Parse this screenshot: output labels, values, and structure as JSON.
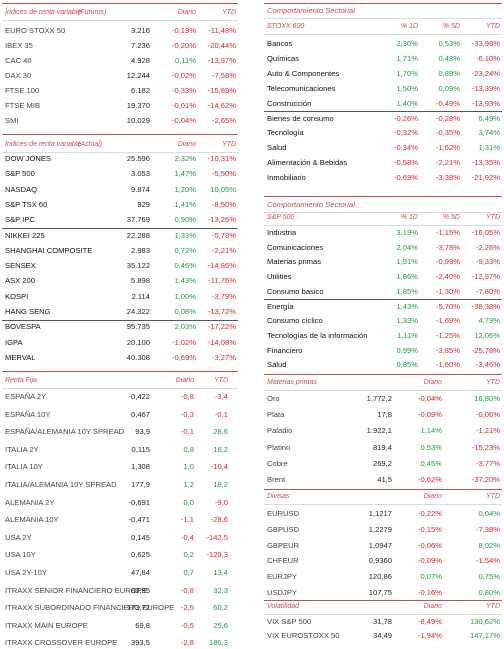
{
  "left": [
    {
      "header": {
        "label": "Índices de renta variable",
        "note": "(Futuros)",
        "columns": [
          "Diario",
          "YTD"
        ]
      },
      "rows": [
        [
          "EURO STOXX 50",
          "3.216",
          "-0,19%",
          "-11,48%"
        ],
        [
          "IBEX 35",
          "7.236",
          "-0,20%",
          "-20,44%"
        ],
        [
          "CAC 40",
          "4.928",
          "0,11%",
          "-13,97%"
        ],
        [
          "DAX 30",
          "12.244",
          "-0,02%",
          "-7,58%"
        ],
        [
          "FTSE 100",
          "6.182",
          "-0,33%",
          "-15,89%"
        ],
        [
          "FTSE MIB",
          "19.370",
          "-0,01%",
          "-14,62%"
        ],
        [
          "SMI",
          "10.029",
          "-0,04%",
          "-2,65%"
        ]
      ]
    },
    {
      "header": {
        "label": "Índices de renta variable",
        "note": "(Actual)",
        "columns": [
          "Diario",
          "YTD"
        ]
      },
      "rows": [
        [
          "DOW JONES",
          "25.596",
          "2,32%",
          "-10,31%"
        ],
        [
          "S&P 500",
          "3.053",
          "1,47%",
          "-5,50%"
        ],
        [
          "NASDAQ",
          "9.874",
          "1,20%",
          "10,05%"
        ],
        [
          "S&P TSX 60",
          "929",
          "1,41%",
          "-8,50%"
        ],
        [
          "S&P IPC",
          "37.769",
          "0,90%",
          "-13,26%"
        ],
        [
          "NIKKEI 225",
          "22.288",
          "1,33%",
          "-5,78%"
        ],
        [
          "SHANGHAI COMPOSITE",
          "2.983",
          "0,72%",
          "-2,21%"
        ],
        [
          "SENSEX",
          "35.122",
          "0,46%",
          "-14,86%"
        ],
        [
          "ASX 200",
          "5.898",
          "1,43%",
          "-11,76%"
        ],
        [
          "KOSPI",
          "2.114",
          "1,00%",
          "-3,79%"
        ],
        [
          "HANG SENG",
          "24.322",
          "0,08%",
          "-13,72%"
        ],
        [
          "BOVESPA",
          "95.735",
          "2,03%",
          "-17,22%"
        ],
        [
          "IGPA",
          "20.100",
          "-1,02%",
          "-14,08%"
        ],
        [
          "MERVAL",
          "40.308",
          "-0,69%",
          "-3,27%"
        ]
      ]
    },
    {
      "header": {
        "label": "Renta Fija",
        "columns": [
          "Diario",
          "YTD"
        ]
      },
      "rows": [
        [
          "ESPAÑA 2Y",
          "-0,422",
          "-0,8",
          "-3,4"
        ],
        [
          "ESPAÑA 10Y",
          "0,467",
          "-0,3",
          "-0,1"
        ],
        [
          "ESPAÑA/ALEMANIA 10Y SPREAD",
          "93,9",
          "-0,1",
          "28,6"
        ],
        [
          "ITALIA 2Y",
          "0,115",
          "0,8",
          "16,2"
        ],
        [
          "ITALIA 10Y",
          "1,308",
          "1,0",
          "-10,4"
        ],
        [
          "ITALIA/ALEMANIA 10Y SPREAD",
          "177,9",
          "1,2",
          "18,2"
        ],
        [
          "ALEMANIA 2Y",
          "-0,691",
          "0,0",
          "-9,0"
        ],
        [
          "ALEMANIA 10Y",
          "-0,471",
          "-1,1",
          "-28,6"
        ],
        [
          "USA 2Y",
          "0,145",
          "-0,4",
          "-142,5"
        ],
        [
          "USA 10Y",
          "0,625",
          "0,2",
          "-129,3"
        ],
        [
          "USA 2Y-10Y",
          "47,84",
          "0,7",
          "13,4"
        ],
        [
          "ITRAXX SENIOR FINANCIERO EUROPE",
          "83,95",
          "-0,8",
          "32,3"
        ],
        [
          "ITRAXX SUBORDINADO FINANCIERO EUROPE",
          "173,72",
          "-2,5",
          "60,2"
        ],
        [
          "ITRAXX MAIN EUROPE",
          "69,8",
          "-0,5",
          "25,6"
        ],
        [
          "ITRAXX CROSSOVER EUROPE",
          "393,5",
          "-2,8",
          "186,3"
        ]
      ]
    }
  ],
  "right": [
    {
      "title": "Comportamiento Sectorial",
      "header": {
        "label": "STOXX 600",
        "columns": [
          "% 1D",
          "% 5D",
          "YTD"
        ]
      },
      "rows": [
        [
          "Bancos",
          "2,30%",
          "0,53%",
          "-33,98%"
        ],
        [
          "Químicas",
          "1,71%",
          "0,48%",
          "-6,10%"
        ],
        [
          "Auto & Componentes",
          "1,70%",
          "0,89%",
          "-23,24%"
        ],
        [
          "Telecomunicaciones",
          "1,50%",
          "0,09%",
          "-13,39%"
        ],
        [
          "Construcción",
          "1,40%",
          "-0,49%",
          "-13,93%"
        ],
        [
          "Bienes de consumo",
          "-0,26%",
          "-0,28%",
          "6,49%"
        ],
        [
          "Tecnología",
          "-0,32%",
          "-0,35%",
          "3,74%"
        ],
        [
          "Salud",
          "-0,34%",
          "-1,62%",
          "1,31%"
        ],
        [
          "Alimentación & Bebidas",
          "-0,58%",
          "-2,21%",
          "-13,35%"
        ],
        [
          "Inmobiliario",
          "-0,69%",
          "-3,38%",
          "-21,92%"
        ]
      ]
    },
    {
      "title": "Comportamiento Sectorial",
      "header": {
        "label": "S&P 500",
        "columns": [
          "% 1D",
          "% 5D",
          "YTD"
        ]
      },
      "rows": [
        [
          "Industria",
          "3,19%",
          "-1,15%",
          "-16,05%"
        ],
        [
          "Comunicaciones",
          "2,04%",
          "-3,78%",
          "-2,26%"
        ],
        [
          "Materias primas",
          "1,91%",
          "-0,99%",
          "-9,33%"
        ],
        [
          "Utilities",
          "1,86%",
          "-2,40%",
          "-12,97%"
        ],
        [
          "Consumo basico",
          "1,85%",
          "-1,30%",
          "-7,80%"
        ],
        [
          "Energía",
          "1,43%",
          "-5,70%",
          "-38,38%"
        ],
        [
          "Consumo cíclico",
          "1,33%",
          "-1,69%",
          "4,79%"
        ],
        [
          "Tecnologías de la información",
          "1,11%",
          "-1,25%",
          "12,06%"
        ],
        [
          "Financiero",
          "0,99%",
          "-3,85%",
          "-25,78%"
        ],
        [
          "Salud",
          "0,85%",
          "-1,60%",
          "-3,46%"
        ]
      ]
    },
    {
      "header": {
        "label": "Materias primas",
        "columns": [
          "Diario",
          "YTD"
        ]
      },
      "rows": [
        [
          "Oro",
          "1.772,2",
          "-0,04%",
          "16,80%"
        ],
        [
          "Plata",
          "17,8",
          "-0,09%",
          "-0,06%"
        ],
        [
          "Paladio",
          "1.922,1",
          "1,14%",
          "-1,21%"
        ],
        [
          "Platino",
          "819,4",
          "0,53%",
          "-15,23%"
        ],
        [
          "Cobre",
          "269,2",
          "0,45%",
          "-3,77%"
        ],
        [
          "Brent",
          "41,5",
          "-0,62%",
          "-37,20%"
        ]
      ]
    },
    {
      "header": {
        "label": "Divisas",
        "columns": [
          "Diario",
          "YTD"
        ]
      },
      "rows": [
        [
          "EURUSD",
          "1,1217",
          "-0,22%",
          "0,04%"
        ],
        [
          "GBPUSD",
          "1,2279",
          "-0,15%",
          "-7,38%"
        ],
        [
          "GBPEUR",
          "1,0947",
          "-0,06%",
          "8,02%"
        ],
        [
          "CHFEUR",
          "0,9360",
          "-0,09%",
          "-1,54%"
        ],
        [
          "EURJPY",
          "120,86",
          "0,07%",
          "0,75%"
        ],
        [
          "USDJPY",
          "107,75",
          "-0,16%",
          "0,80%"
        ]
      ]
    },
    {
      "header": {
        "label": "Volatilidad",
        "columns": [
          "Diario",
          "YTD"
        ]
      },
      "rows": [
        [
          "VIX S&P 500",
          "31,78",
          "-8,49%",
          "130,62%"
        ],
        [
          "VIX EUROSTOXX 50",
          "34,49",
          "-1,94%",
          "147,17%"
        ]
      ]
    }
  ]
}
